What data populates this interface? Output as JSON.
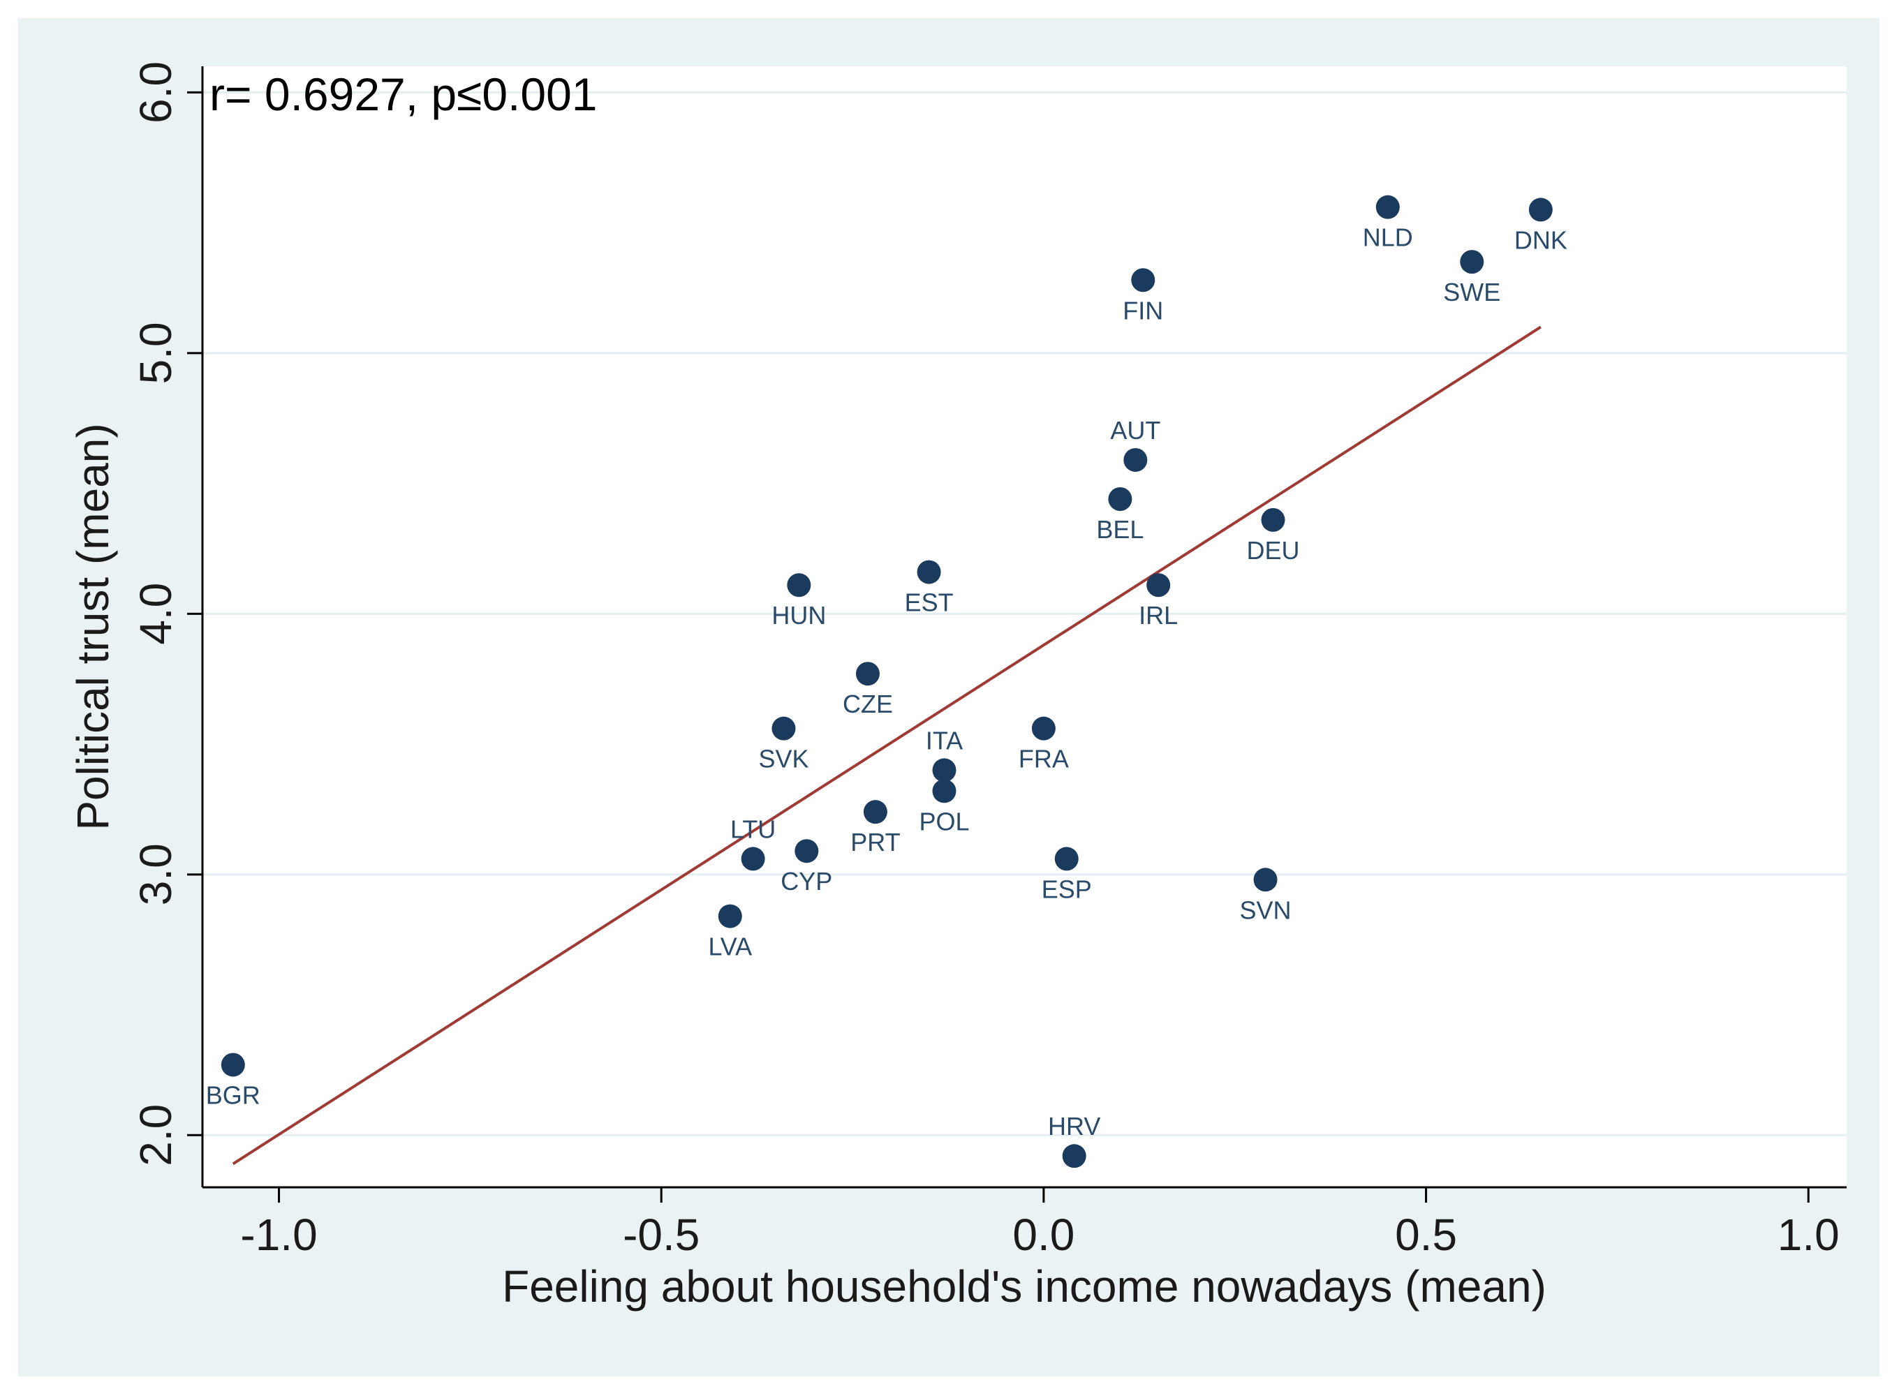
{
  "chart_data": {
    "type": "scatter",
    "title": "",
    "annotation": "r= 0.6927, p≤0.001",
    "xlabel": "Feeling about household's income nowadays (mean)",
    "ylabel": "Political trust (mean)",
    "xlim": [
      -1.1,
      1.05
    ],
    "ylim": [
      1.8,
      6.1
    ],
    "grid": true,
    "xticks": [
      {
        "value": -1.0,
        "label": "-1.0"
      },
      {
        "value": -0.5,
        "label": "-0.5"
      },
      {
        "value": 0.0,
        "label": "0.0"
      },
      {
        "value": 0.5,
        "label": "0.5"
      },
      {
        "value": 1.0,
        "label": "1.0"
      }
    ],
    "yticks": [
      {
        "value": 2.0,
        "label": "2.0"
      },
      {
        "value": 3.0,
        "label": "3.0"
      },
      {
        "value": 4.0,
        "label": "4.0"
      },
      {
        "value": 5.0,
        "label": "5.0"
      },
      {
        "value": 6.0,
        "label": "6.0"
      }
    ],
    "fit_line": {
      "x": [
        -1.06,
        0.65
      ],
      "y": [
        1.89,
        5.1
      ]
    },
    "points": [
      {
        "label": "NLD",
        "x": 0.45,
        "y": 5.56,
        "label_pos": "below"
      },
      {
        "label": "DNK",
        "x": 0.65,
        "y": 5.55,
        "label_pos": "below"
      },
      {
        "label": "SWE",
        "x": 0.56,
        "y": 5.35,
        "label_pos": "below"
      },
      {
        "label": "FIN",
        "x": 0.13,
        "y": 5.28,
        "label_pos": "below"
      },
      {
        "label": "AUT",
        "x": 0.12,
        "y": 4.59,
        "label_pos": "above"
      },
      {
        "label": "BEL",
        "x": 0.1,
        "y": 4.44,
        "label_pos": "below"
      },
      {
        "label": "DEU",
        "x": 0.3,
        "y": 4.36,
        "label_pos": "below"
      },
      {
        "label": "IRL",
        "x": 0.15,
        "y": 4.11,
        "label_pos": "below"
      },
      {
        "label": "EST",
        "x": -0.15,
        "y": 4.16,
        "label_pos": "below"
      },
      {
        "label": "HUN",
        "x": -0.32,
        "y": 4.11,
        "label_pos": "below"
      },
      {
        "label": "CZE",
        "x": -0.23,
        "y": 3.77,
        "label_pos": "below"
      },
      {
        "label": "SVK",
        "x": -0.34,
        "y": 3.56,
        "label_pos": "below"
      },
      {
        "label": "FRA",
        "x": 0.0,
        "y": 3.56,
        "label_pos": "below"
      },
      {
        "label": "ITA",
        "x": -0.13,
        "y": 3.4,
        "label_pos": "above"
      },
      {
        "label": "POL",
        "x": -0.13,
        "y": 3.32,
        "label_pos": "below"
      },
      {
        "label": "PRT",
        "x": -0.22,
        "y": 3.24,
        "label_pos": "below"
      },
      {
        "label": "LTU",
        "x": -0.38,
        "y": 3.06,
        "label_pos": "above"
      },
      {
        "label": "CYP",
        "x": -0.31,
        "y": 3.09,
        "label_pos": "below"
      },
      {
        "label": "ESP",
        "x": 0.03,
        "y": 3.06,
        "label_pos": "below"
      },
      {
        "label": "SVN",
        "x": 0.29,
        "y": 2.98,
        "label_pos": "below"
      },
      {
        "label": "LVA",
        "x": -0.41,
        "y": 2.84,
        "label_pos": "below"
      },
      {
        "label": "BGR",
        "x": -1.06,
        "y": 2.27,
        "label_pos": "below"
      },
      {
        "label": "HRV",
        "x": 0.04,
        "y": 1.92,
        "label_pos": "above"
      }
    ]
  }
}
